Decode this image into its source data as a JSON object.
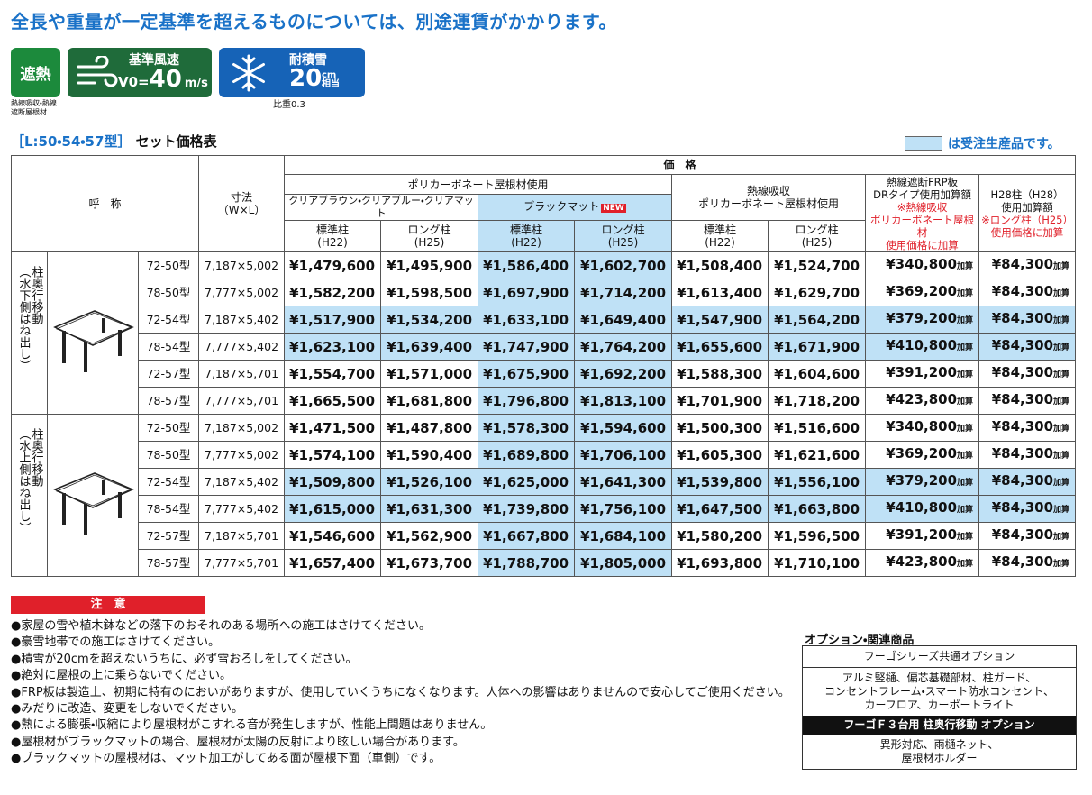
{
  "headline": "全長や重量が一定基準を超えるものについては、別途運賃がかかります。",
  "badges": {
    "heat": {
      "label": "遮熱",
      "caption": [
        "熱線吸収・熱線",
        "遮断屋根材"
      ]
    },
    "wind": {
      "label": "基準風速",
      "prefix": "V0=",
      "value": "40",
      "unit": "m/s"
    },
    "snow": {
      "label": "耐積雪",
      "value": "20",
      "unit": "cm",
      "suffix": "相当",
      "caption": "比重0.3"
    }
  },
  "table_title": {
    "series": "［L:50・54・57型］",
    "name": "セット価格表",
    "legend": "は受注生産品です。"
  },
  "header": {
    "name": "呼　称",
    "size": [
      "寸法",
      "（W×L）"
    ],
    "price": "価　格",
    "poly": "ポリカーボネート屋根材使用",
    "clear": "クリアブラウン・クリアブルー・クリアマット",
    "black": "ブラックマット",
    "new": "NEW",
    "heat": [
      "熱線吸収",
      "ポリカーボネート屋根材使用"
    ],
    "frp": [
      "熱線遮断FRP板",
      "DRタイプ使用加算額"
    ],
    "frp_note": [
      "※熱線吸収",
      "ポリカーボネート屋根材",
      "使用価格に加算"
    ],
    "h28": [
      "H28柱（H28）",
      "使用加算額"
    ],
    "h28_note": [
      "※ロング柱（H25）",
      "使用価格に加算"
    ],
    "std": [
      "標準柱",
      "(H22)"
    ],
    "long": [
      "ロング柱",
      "(H25)"
    ]
  },
  "add_label": "加算",
  "groups": [
    {
      "label": [
        "柱奥行移動",
        "（水下側はね出し）"
      ],
      "rows": [
        {
          "model": "72-50型",
          "size": "7,187×5,002",
          "order": false,
          "prices": [
            "¥1,479,600",
            "¥1,495,900",
            "¥1,586,400",
            "¥1,602,700",
            "¥1,508,400",
            "¥1,524,700",
            "¥340,800",
            "¥84,300"
          ]
        },
        {
          "model": "78-50型",
          "size": "7,777×5,002",
          "order": false,
          "prices": [
            "¥1,582,200",
            "¥1,598,500",
            "¥1,697,900",
            "¥1,714,200",
            "¥1,613,400",
            "¥1,629,700",
            "¥369,200",
            "¥84,300"
          ]
        },
        {
          "model": "72-54型",
          "size": "7,187×5,402",
          "order": true,
          "prices": [
            "¥1,517,900",
            "¥1,534,200",
            "¥1,633,100",
            "¥1,649,400",
            "¥1,547,900",
            "¥1,564,200",
            "¥379,200",
            "¥84,300"
          ]
        },
        {
          "model": "78-54型",
          "size": "7,777×5,402",
          "order": true,
          "prices": [
            "¥1,623,100",
            "¥1,639,400",
            "¥1,747,900",
            "¥1,764,200",
            "¥1,655,600",
            "¥1,671,900",
            "¥410,800",
            "¥84,300"
          ]
        },
        {
          "model": "72-57型",
          "size": "7,187×5,701",
          "order": false,
          "prices": [
            "¥1,554,700",
            "¥1,571,000",
            "¥1,675,900",
            "¥1,692,200",
            "¥1,588,300",
            "¥1,604,600",
            "¥391,200",
            "¥84,300"
          ]
        },
        {
          "model": "78-57型",
          "size": "7,777×5,701",
          "order": false,
          "prices": [
            "¥1,665,500",
            "¥1,681,800",
            "¥1,796,800",
            "¥1,813,100",
            "¥1,701,900",
            "¥1,718,200",
            "¥423,800",
            "¥84,300"
          ]
        }
      ]
    },
    {
      "label": [
        "柱奥行移動",
        "（水上側はね出し）"
      ],
      "rows": [
        {
          "model": "72-50型",
          "size": "7,187×5,002",
          "order": false,
          "prices": [
            "¥1,471,500",
            "¥1,487,800",
            "¥1,578,300",
            "¥1,594,600",
            "¥1,500,300",
            "¥1,516,600",
            "¥340,800",
            "¥84,300"
          ]
        },
        {
          "model": "78-50型",
          "size": "7,777×5,002",
          "order": false,
          "prices": [
            "¥1,574,100",
            "¥1,590,400",
            "¥1,689,800",
            "¥1,706,100",
            "¥1,605,300",
            "¥1,621,600",
            "¥369,200",
            "¥84,300"
          ]
        },
        {
          "model": "72-54型",
          "size": "7,187×5,402",
          "order": true,
          "prices": [
            "¥1,509,800",
            "¥1,526,100",
            "¥1,625,000",
            "¥1,641,300",
            "¥1,539,800",
            "¥1,556,100",
            "¥379,200",
            "¥84,300"
          ]
        },
        {
          "model": "78-54型",
          "size": "7,777×5,402",
          "order": true,
          "prices": [
            "¥1,615,000",
            "¥1,631,300",
            "¥1,739,800",
            "¥1,756,100",
            "¥1,647,500",
            "¥1,663,800",
            "¥410,800",
            "¥84,300"
          ]
        },
        {
          "model": "72-57型",
          "size": "7,187×5,701",
          "order": false,
          "prices": [
            "¥1,546,600",
            "¥1,562,900",
            "¥1,667,800",
            "¥1,684,100",
            "¥1,580,200",
            "¥1,596,500",
            "¥391,200",
            "¥84,300"
          ]
        },
        {
          "model": "78-57型",
          "size": "7,777×5,701",
          "order": false,
          "prices": [
            "¥1,657,400",
            "¥1,673,700",
            "¥1,788,700",
            "¥1,805,000",
            "¥1,693,800",
            "¥1,710,100",
            "¥423,800",
            "¥84,300"
          ]
        }
      ]
    }
  ],
  "notes": {
    "title": "注　意",
    "items": [
      "●家屋の雪や植木鉢などの落下のおそれのある場所への施工はさけてください。",
      "●豪雪地帯での施工はさけてください。",
      "●積雪が20cmを超えないうちに、必ず雪おろしをしてください。",
      "●絶対に屋根の上に乗らないでください。",
      "●FRP板は製造上、初期に特有のにおいがありますが、使用していくうちになくなります。人体への影響はありませんので安心してご使用ください。",
      "●みだりに改造、変更をしないでください。",
      "●熱による膨張・収縮により屋根材がこすれる音が発生しますが、性能上問題はありません。",
      "●屋根材がブラックマットの場合、屋根材が太陽の反射により眩しい場合があります。",
      "●ブラックマットの屋根材は、マット加工がしてある面が屋根下面（車側）です。"
    ]
  },
  "options": {
    "title": "オプション・関連商品",
    "common": {
      "title": "フーゴシリーズ共通オプション",
      "lines": [
        "アルミ竪樋、偏芯基礎部材、柱ガード、",
        "コンセントフレーム・スマート防水コンセント、",
        "カーフロア、カーポートライト"
      ]
    },
    "special": {
      "title": "フーゴＦ３台用 柱奥行移動 オプション",
      "lines": [
        "異形対応、雨樋ネット、",
        "屋根材ホルダー"
      ]
    }
  }
}
